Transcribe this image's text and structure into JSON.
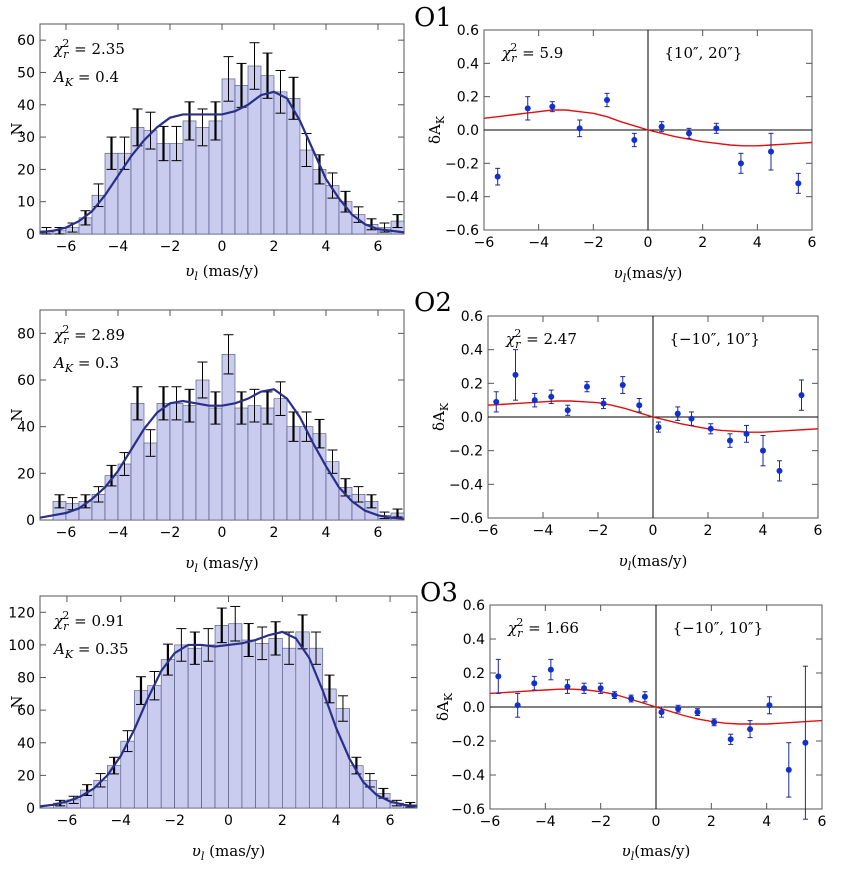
{
  "panel_titles": [
    "O1",
    "O2",
    "O3"
  ],
  "chart_data": [
    {
      "id": "hist-o1",
      "type": "bar",
      "xlabel": "υl (mas/y)",
      "ylabel": "N",
      "xlim": [
        -7,
        7
      ],
      "ylim": [
        0,
        65
      ],
      "xticks": [
        -6,
        -4,
        -2,
        0,
        2,
        4,
        6
      ],
      "yticks": [
        0,
        10,
        20,
        30,
        40,
        50,
        60
      ],
      "annotations": [
        "χr² = 2.35",
        "AK = 0.4"
      ],
      "bin_width": 0.5,
      "bin_centers": [
        -6.75,
        -6.25,
        -5.75,
        -5.25,
        -4.75,
        -4.25,
        -3.75,
        -3.25,
        -2.75,
        -2.25,
        -1.75,
        -1.25,
        -0.75,
        -0.25,
        0.25,
        0.75,
        1.25,
        1.75,
        2.25,
        2.75,
        3.25,
        3.75,
        4.25,
        4.75,
        5.25,
        5.75,
        6.25,
        6.75
      ],
      "values": [
        1,
        1,
        2,
        5,
        12,
        25,
        25,
        33,
        32,
        28,
        28,
        35,
        33,
        35,
        48,
        46,
        52,
        49,
        44,
        42,
        26,
        20,
        15,
        10,
        6,
        3,
        2,
        4
      ],
      "errors": [
        1,
        1,
        1.4,
        2.2,
        3.5,
        5,
        5,
        5.7,
        5.7,
        5.3,
        5.3,
        5.9,
        5.7,
        5.9,
        6.9,
        6.8,
        7.2,
        7,
        6.6,
        6.5,
        5.1,
        4.5,
        3.9,
        3.2,
        2.4,
        1.7,
        1.4,
        2
      ],
      "fit_curve": {
        "x": [
          -7,
          -6.5,
          -6,
          -5.5,
          -5,
          -4.5,
          -4,
          -3.5,
          -3,
          -2.5,
          -2,
          -1.5,
          -1,
          -0.5,
          0,
          0.5,
          1,
          1.5,
          2,
          2.5,
          3,
          3.5,
          4,
          4.5,
          5,
          5.5,
          6,
          6.5,
          7
        ],
        "y": [
          0.5,
          1,
          2,
          4,
          7,
          12,
          18,
          24,
          29,
          33,
          36,
          37,
          37,
          37,
          37,
          38,
          40,
          43,
          44,
          42,
          35,
          26,
          17,
          11,
          6,
          3,
          1.5,
          1,
          0.5
        ]
      }
    },
    {
      "id": "dak-o1",
      "type": "scatter",
      "xlabel": "υl(mas/y)",
      "ylabel": "δAK",
      "xlim": [
        -6,
        6
      ],
      "ylim": [
        -0.6,
        0.6
      ],
      "xticks": [
        -6,
        -4,
        -2,
        0,
        2,
        4,
        6
      ],
      "yticks": [
        -0.6,
        -0.4,
        -0.2,
        0.0,
        0.2,
        0.4,
        0.6
      ],
      "annotations": [
        "χr² = 5.9",
        "{10″, 20″}"
      ],
      "x": [
        -5.5,
        -4.4,
        -3.5,
        -2.5,
        -1.5,
        -0.5,
        0.5,
        1.5,
        2.5,
        3.4,
        4.5,
        5.5
      ],
      "y": [
        -0.28,
        0.13,
        0.14,
        0.01,
        0.18,
        -0.06,
        0.02,
        -0.02,
        0.01,
        -0.2,
        -0.13,
        -0.32
      ],
      "yerr": [
        0.05,
        0.07,
        0.03,
        0.05,
        0.04,
        0.04,
        0.03,
        0.03,
        0.03,
        0.06,
        0.11,
        0.06
      ],
      "fit_curve": {
        "x": [
          -6,
          -5.5,
          -5,
          -4.5,
          -4,
          -3.5,
          -3,
          -2.5,
          -2,
          -1.5,
          -1,
          -0.5,
          0,
          0.5,
          1,
          1.5,
          2,
          2.5,
          3,
          3.5,
          4,
          4.5,
          5,
          5.5,
          6
        ],
        "y": [
          0.07,
          0.08,
          0.09,
          0.1,
          0.11,
          0.12,
          0.12,
          0.11,
          0.1,
          0.08,
          0.05,
          0.025,
          0,
          -0.02,
          -0.04,
          -0.055,
          -0.07,
          -0.08,
          -0.09,
          -0.095,
          -0.095,
          -0.09,
          -0.085,
          -0.08,
          -0.075
        ]
      }
    },
    {
      "id": "hist-o2",
      "type": "bar",
      "xlabel": "υl (mas/y)",
      "ylabel": "N",
      "xlim": [
        -7,
        7
      ],
      "ylim": [
        0,
        90
      ],
      "xticks": [
        -6,
        -4,
        -2,
        0,
        2,
        4,
        6
      ],
      "yticks": [
        0,
        20,
        40,
        60,
        80
      ],
      "annotations": [
        "χr² = 2.89",
        "AK = 0.3"
      ],
      "bin_width": 0.5,
      "bin_centers": [
        -6.75,
        -6.25,
        -5.75,
        -5.25,
        -4.75,
        -4.25,
        -3.75,
        -3.25,
        -2.75,
        -2.25,
        -1.75,
        -1.25,
        -0.75,
        -0.25,
        0.25,
        0.75,
        1.25,
        1.75,
        2.25,
        2.75,
        3.25,
        3.75,
        4.25,
        4.75,
        5.25,
        5.75,
        6.25,
        6.75
      ],
      "values": [
        0,
        8,
        7,
        8,
        11,
        19,
        24,
        50,
        33,
        50,
        50,
        49,
        60,
        48,
        71,
        48,
        49,
        48,
        52,
        40,
        40,
        37,
        25,
        14,
        11,
        8,
        2,
        3
      ],
      "errors": [
        0,
        2.8,
        2.6,
        2.8,
        3.3,
        4.4,
        4.9,
        7.1,
        5.7,
        7.1,
        7.1,
        7,
        7.7,
        6.9,
        8.4,
        6.9,
        7,
        6.9,
        7.2,
        6.3,
        6.3,
        6.1,
        5,
        3.7,
        3.3,
        2.8,
        1.4,
        1.7
      ],
      "fit_curve": {
        "x": [
          -7,
          -6.5,
          -6,
          -5.5,
          -5,
          -4.5,
          -4,
          -3.5,
          -3,
          -2.5,
          -2,
          -1.5,
          -1,
          -0.5,
          0,
          0.5,
          1,
          1.5,
          2,
          2.5,
          3,
          3.5,
          4,
          4.5,
          5,
          5.5,
          6,
          6.5,
          7
        ],
        "y": [
          1,
          2,
          3,
          5,
          9,
          14,
          21,
          30,
          39,
          46,
          50,
          51,
          50,
          49,
          49,
          50,
          52,
          55,
          56,
          52,
          44,
          33,
          23,
          14,
          8,
          4,
          2,
          1,
          0.5
        ]
      }
    },
    {
      "id": "dak-o2",
      "type": "scatter",
      "xlabel": "υl(mas/y)",
      "ylabel": "δAK",
      "xlim": [
        -6,
        6
      ],
      "ylim": [
        -0.6,
        0.6
      ],
      "xticks": [
        -6,
        -4,
        -2,
        0,
        2,
        4,
        6
      ],
      "yticks": [
        -0.6,
        -0.4,
        -0.2,
        0.0,
        0.2,
        0.4,
        0.6
      ],
      "annotations": [
        "χr² = 2.47",
        "{−10″, 10″}"
      ],
      "x": [
        -5.7,
        -5.0,
        -4.3,
        -3.7,
        -3.1,
        -2.4,
        -1.8,
        -1.1,
        -0.5,
        0.2,
        0.9,
        1.4,
        2.1,
        2.8,
        3.4,
        4.0,
        4.6,
        5.4
      ],
      "y": [
        0.09,
        0.25,
        0.1,
        0.12,
        0.04,
        0.18,
        0.08,
        0.19,
        0.07,
        -0.06,
        0.02,
        -0.01,
        -0.07,
        -0.14,
        -0.1,
        -0.2,
        -0.32,
        0.13
      ],
      "yerr": [
        0.06,
        0.15,
        0.04,
        0.04,
        0.03,
        0.03,
        0.03,
        0.05,
        0.04,
        0.03,
        0.04,
        0.04,
        0.03,
        0.04,
        0.05,
        0.09,
        0.06,
        0.09
      ],
      "fit_curve": {
        "x": [
          -6,
          -5.5,
          -5,
          -4.5,
          -4,
          -3.5,
          -3,
          -2.5,
          -2,
          -1.5,
          -1,
          -0.5,
          0,
          0.5,
          1,
          1.5,
          2,
          2.5,
          3,
          3.5,
          4,
          4.5,
          5,
          5.5,
          6
        ],
        "y": [
          0.07,
          0.075,
          0.08,
          0.085,
          0.09,
          0.095,
          0.095,
          0.09,
          0.085,
          0.07,
          0.05,
          0.025,
          0,
          -0.02,
          -0.04,
          -0.055,
          -0.07,
          -0.08,
          -0.085,
          -0.09,
          -0.09,
          -0.085,
          -0.08,
          -0.075,
          -0.07
        ]
      }
    },
    {
      "id": "hist-o3",
      "type": "bar",
      "xlabel": "υl (mas/y)",
      "ylabel": "N",
      "xlim": [
        -7,
        7
      ],
      "ylim": [
        0,
        130
      ],
      "xticks": [
        -6,
        -4,
        -2,
        0,
        2,
        4,
        6
      ],
      "yticks": [
        0,
        20,
        40,
        60,
        80,
        100,
        120
      ],
      "annotations": [
        "χr² = 0.91",
        "AK = 0.35"
      ],
      "bin_width": 0.5,
      "bin_centers": [
        -6.75,
        -6.25,
        -5.75,
        -5.25,
        -4.75,
        -4.25,
        -3.75,
        -3.25,
        -2.75,
        -2.25,
        -1.75,
        -1.25,
        -0.75,
        -0.25,
        0.25,
        0.75,
        1.25,
        1.75,
        2.25,
        2.75,
        3.25,
        3.75,
        4.25,
        4.75,
        5.25,
        5.75,
        6.25,
        6.75
      ],
      "values": [
        0,
        3,
        5,
        11,
        17,
        26,
        41,
        72,
        75,
        91,
        100,
        98,
        100,
        112,
        113,
        103,
        101,
        104,
        98,
        108,
        98,
        73,
        61,
        26,
        17,
        9,
        3,
        2
      ],
      "errors": [
        0,
        1.7,
        2.2,
        3.3,
        4.1,
        5.1,
        6.4,
        8.5,
        8.7,
        9.5,
        10,
        9.9,
        10,
        10.6,
        10.6,
        10.1,
        10,
        10.2,
        9.9,
        10.4,
        9.9,
        8.5,
        7.8,
        5.1,
        4.1,
        3,
        1.7,
        1.4
      ],
      "fit_curve": {
        "x": [
          -7,
          -6.5,
          -6,
          -5.5,
          -5,
          -4.5,
          -4,
          -3.5,
          -3,
          -2.5,
          -2,
          -1.5,
          -1,
          -0.5,
          0,
          0.5,
          1,
          1.5,
          2,
          2.5,
          3,
          3.5,
          4,
          4.5,
          5,
          5.5,
          6,
          6.5,
          7
        ],
        "y": [
          1,
          2,
          4,
          7,
          12,
          20,
          32,
          48,
          67,
          84,
          95,
          100,
          100,
          99,
          100,
          101,
          103,
          106,
          108,
          104,
          92,
          72,
          49,
          30,
          16,
          8,
          4,
          2,
          1
        ]
      }
    },
    {
      "id": "dak-o3",
      "type": "scatter",
      "xlabel": "υl(mas/y)",
      "ylabel": "δAK",
      "xlim": [
        -6,
        6
      ],
      "ylim": [
        -0.6,
        0.6
      ],
      "xticks": [
        -6,
        -4,
        -2,
        0,
        2,
        4,
        6
      ],
      "yticks": [
        -0.6,
        -0.4,
        -0.2,
        0.0,
        0.2,
        0.4,
        0.6
      ],
      "annotations": [
        "χr² = 1.66",
        "{−10″, 10″}"
      ],
      "x": [
        -5.7,
        -5.0,
        -4.4,
        -3.8,
        -3.2,
        -2.6,
        -2.0,
        -1.5,
        -0.9,
        -0.4,
        0.2,
        0.8,
        1.5,
        2.1,
        2.7,
        3.4,
        4.1,
        4.8,
        5.4
      ],
      "y": [
        0.18,
        0.01,
        0.14,
        0.22,
        0.12,
        0.11,
        0.11,
        0.07,
        0.05,
        0.06,
        -0.03,
        -0.01,
        -0.03,
        -0.09,
        -0.19,
        -0.13,
        0.01,
        -0.37,
        -0.21
      ],
      "yerr": [
        0.1,
        0.07,
        0.04,
        0.06,
        0.04,
        0.03,
        0.03,
        0.02,
        0.02,
        0.03,
        0.03,
        0.02,
        0.02,
        0.02,
        0.03,
        0.05,
        0.05,
        0.16,
        0.45
      ],
      "fit_curve": {
        "x": [
          -6,
          -5.5,
          -5,
          -4.5,
          -4,
          -3.5,
          -3,
          -2.5,
          -2,
          -1.5,
          -1,
          -0.5,
          0,
          0.5,
          1,
          1.5,
          2,
          2.5,
          3,
          3.5,
          4,
          4.5,
          5,
          5.5,
          6
        ],
        "y": [
          0.08,
          0.085,
          0.09,
          0.095,
          0.1,
          0.105,
          0.105,
          0.1,
          0.09,
          0.075,
          0.05,
          0.025,
          0,
          -0.025,
          -0.05,
          -0.07,
          -0.085,
          -0.095,
          -0.1,
          -0.1,
          -0.1,
          -0.095,
          -0.09,
          -0.085,
          -0.08
        ]
      }
    }
  ]
}
